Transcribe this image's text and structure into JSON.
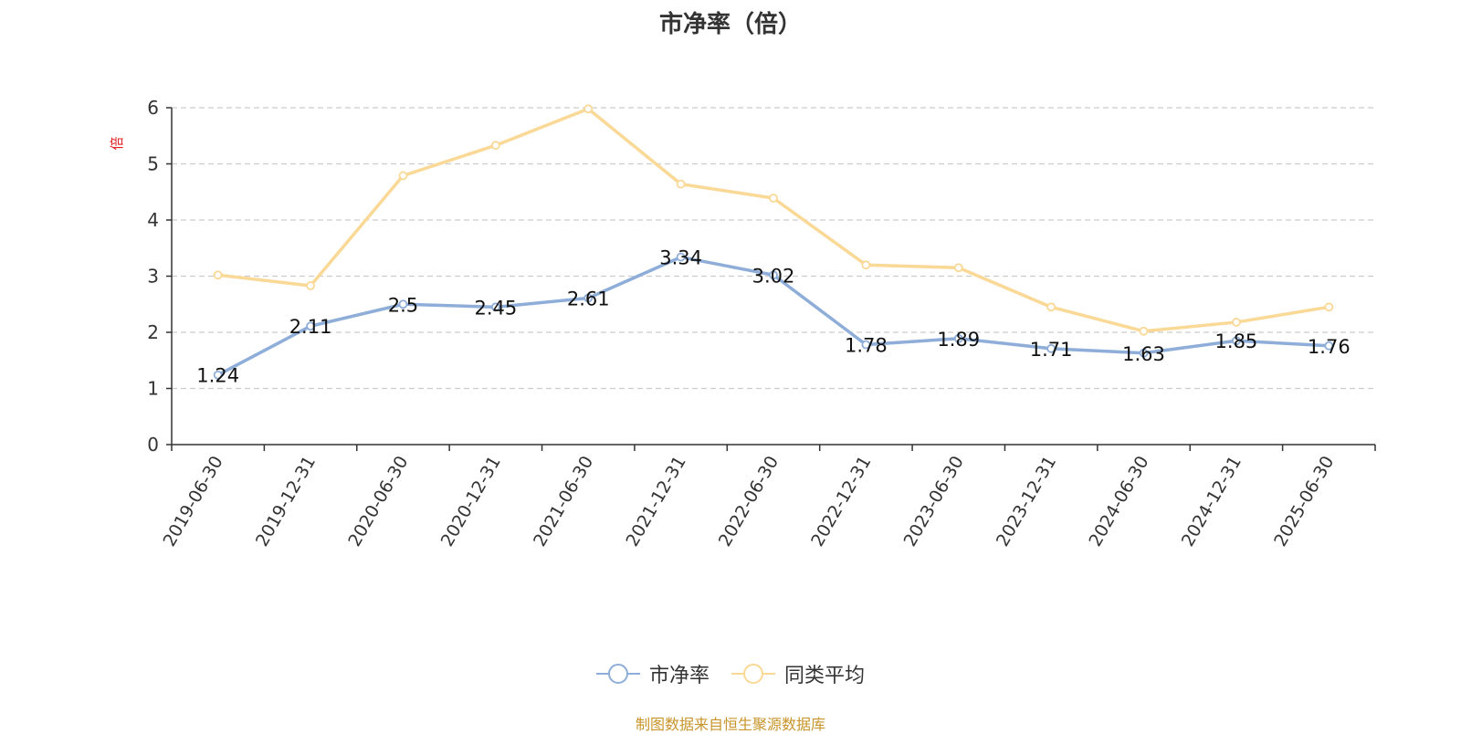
{
  "colors": {
    "series1": "#8eaed9",
    "series2": "#fad896",
    "grid": "#cccccc",
    "axis": "#333333",
    "unit": "#e02020",
    "source": "#c8952a"
  },
  "source_note": "制图数据来自恒生聚源数据库",
  "chart_data": {
    "type": "line",
    "title": "市净率（倍）",
    "ylabel": "倍",
    "xlabel": "",
    "ylim": [
      0,
      6
    ],
    "yticks": [
      0,
      1,
      2,
      3,
      4,
      5,
      6
    ],
    "grid": true,
    "legend_position": "bottom-center",
    "categories": [
      "2019-06-30",
      "2019-12-31",
      "2020-06-30",
      "2020-12-31",
      "2021-06-30",
      "2021-12-31",
      "2022-06-30",
      "2022-12-31",
      "2023-06-30",
      "2023-12-31",
      "2024-06-30",
      "2024-12-31",
      "2025-06-30"
    ],
    "series": [
      {
        "name": "市净率",
        "values": [
          1.24,
          2.11,
          2.5,
          2.45,
          2.61,
          3.34,
          3.02,
          1.78,
          1.89,
          1.71,
          1.63,
          1.85,
          1.76
        ],
        "data_labels": [
          "1.24",
          "2.11",
          "2.5",
          "2.45",
          "2.61",
          "3.34",
          "3.02",
          "1.78",
          "1.89",
          "1.71",
          "1.63",
          "1.85",
          "1.76"
        ]
      },
      {
        "name": "同类平均",
        "values": [
          3.02,
          2.83,
          4.79,
          5.33,
          5.98,
          4.64,
          4.39,
          3.2,
          3.15,
          2.45,
          2.02,
          2.18,
          2.45
        ]
      }
    ]
  }
}
